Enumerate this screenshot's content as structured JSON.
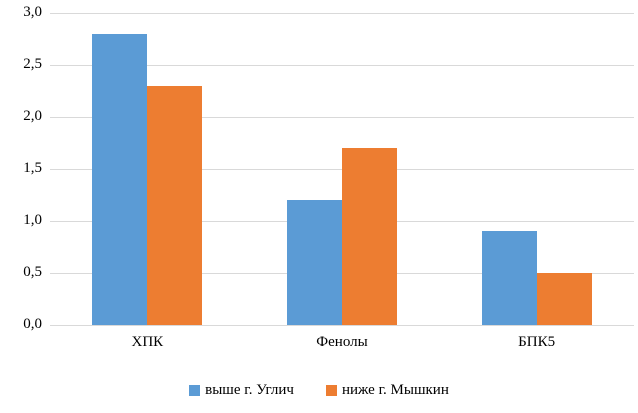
{
  "chart_data": {
    "type": "bar",
    "categories": [
      "ХПК",
      "Фенолы",
      "БПК5"
    ],
    "series": [
      {
        "name": "выше г. Углич",
        "color": "#5B9BD5",
        "values": [
          2.8,
          1.2,
          0.9
        ]
      },
      {
        "name": "ниже г. Мышкин",
        "color": "#ED7D31",
        "values": [
          2.3,
          1.7,
          0.5
        ]
      }
    ],
    "title": "",
    "xlabel": "",
    "ylabel": "",
    "ylim": [
      0,
      3
    ],
    "ytick_step": 0.5,
    "ytick_labels": [
      "0,0",
      "0,5",
      "1,0",
      "1,5",
      "2,0",
      "2,5",
      "3,0"
    ],
    "decimal_separator": ",",
    "grid": true,
    "gridline_color": "#D9D9D9",
    "legend_position": "bottom"
  }
}
